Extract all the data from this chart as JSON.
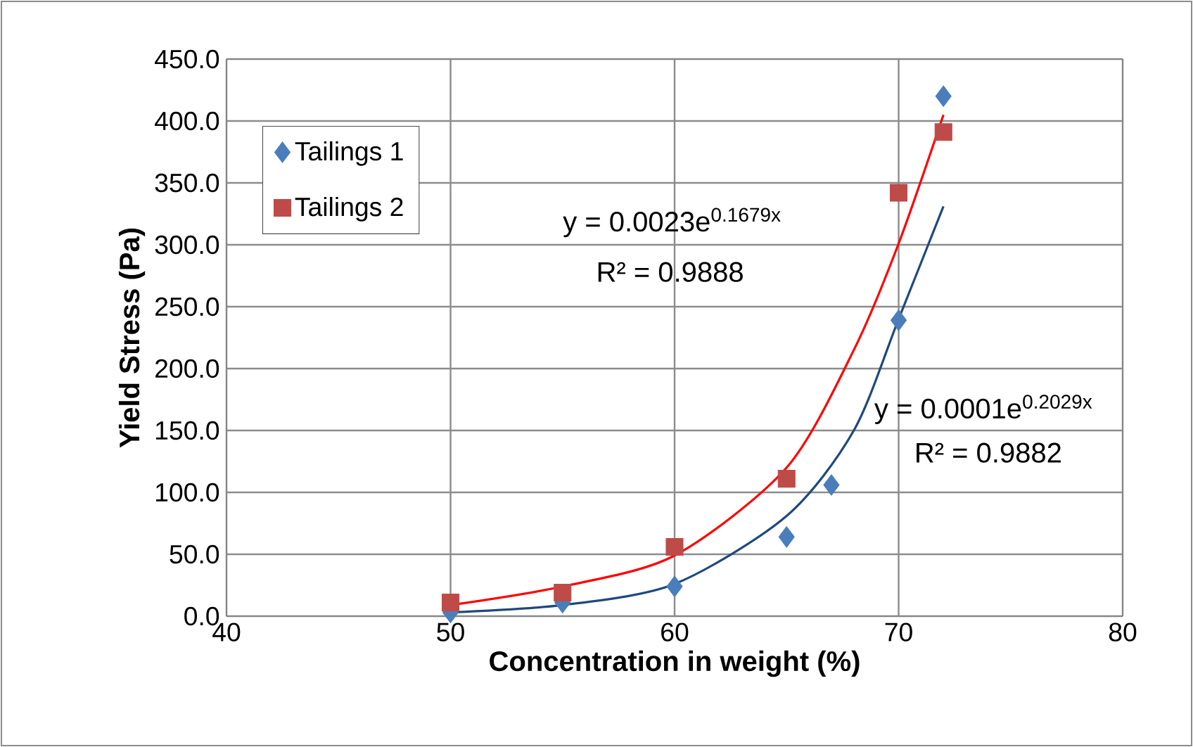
{
  "chart_data": {
    "type": "scatter",
    "xlabel": "Concentration in weight (%)",
    "ylabel": "Yield Stress (Pa)",
    "xlim": [
      40,
      80
    ],
    "xticks": [
      40,
      50,
      60,
      70,
      80
    ],
    "ylim": [
      0,
      450
    ],
    "yticks": [
      {
        "value": 0,
        "label": "0.0"
      },
      {
        "value": 50,
        "label": "50.0"
      },
      {
        "value": 100,
        "label": "100.0"
      },
      {
        "value": 150,
        "label": "150.0"
      },
      {
        "value": 200,
        "label": "200.0"
      },
      {
        "value": 250,
        "label": "250.0"
      },
      {
        "value": 300,
        "label": "300.0"
      },
      {
        "value": 350,
        "label": "350.0"
      },
      {
        "value": 400,
        "label": "400.0"
      },
      {
        "value": 450,
        "label": "450.0"
      }
    ],
    "grid": true,
    "legend": "top left",
    "series": [
      {
        "name": "Tailings 1",
        "type": "scatter",
        "marker": "diamond",
        "color": "#4a7ebb",
        "x": [
          50,
          55,
          60,
          65,
          67,
          70,
          72
        ],
        "values": [
          3,
          11,
          24,
          64,
          106,
          239,
          420
        ]
      },
      {
        "name": "Tailings 2",
        "type": "scatter",
        "marker": "square",
        "color": "#be4b48",
        "x": [
          50,
          55,
          60,
          65,
          70,
          72
        ],
        "values": [
          11,
          19,
          56,
          111,
          342,
          391
        ]
      },
      {
        "type": "line",
        "marker": "none",
        "color": "#1f497d",
        "x": [
          50,
          55,
          60,
          65,
          68,
          70,
          72
        ],
        "values": [
          3,
          9,
          26,
          81,
          150,
          240,
          331
        ]
      },
      {
        "type": "line",
        "marker": "none",
        "color": "#ff0000",
        "x": [
          50,
          55,
          60,
          65,
          68,
          70,
          72
        ],
        "values": [
          9,
          24,
          49,
          120,
          215,
          301,
          405
        ]
      }
    ],
    "annotations": [
      "y = 0.0023e$^{0.1679x}$",
      "R² = 0.9888",
      "y = 0.0001e$^{0.2029x}$",
      "R² = 0.9882"
    ]
  }
}
